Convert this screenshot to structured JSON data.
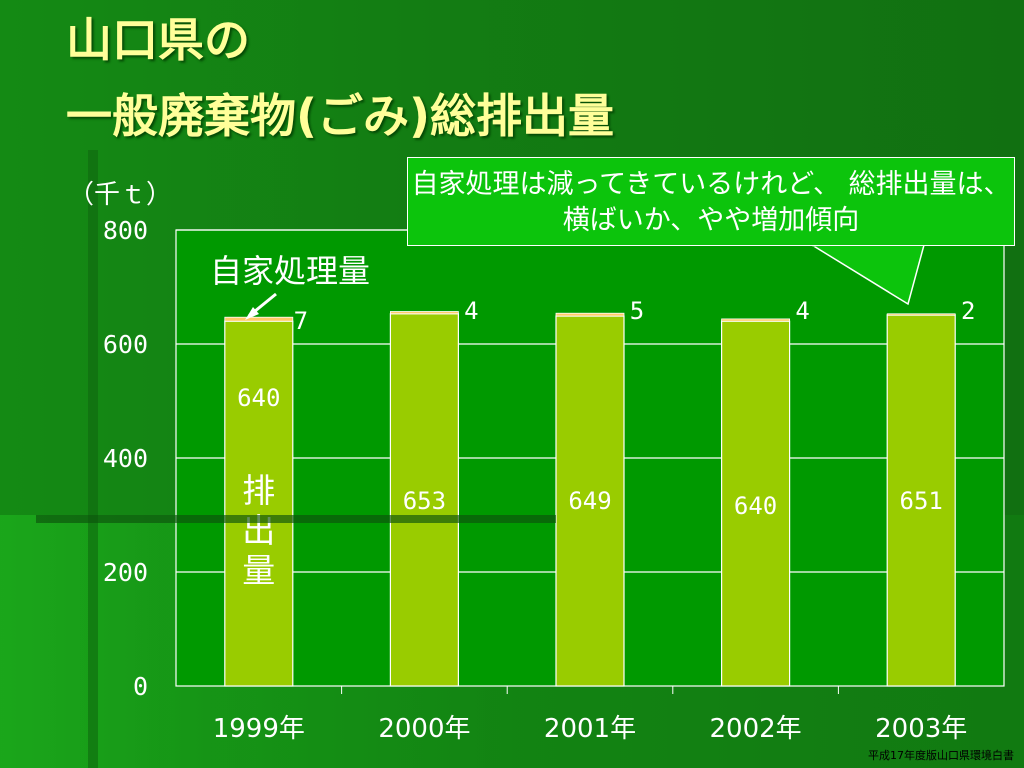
{
  "slide": {
    "title_line1": "山口県の",
    "title_line2": "一般廃棄物(ごみ)総排出量",
    "unit": "（千ｔ）",
    "callout": "自家処理は減ってきているけれど、 総排出量は、横ばいか、やや増加傾向",
    "source": "平成17年度版山口県環境白書"
  },
  "chart_data": {
    "type": "bar",
    "stacked": true,
    "categories": [
      "1999年",
      "2000年",
      "2001年",
      "2002年",
      "2003年"
    ],
    "series": [
      {
        "name": "排出量",
        "values": [
          640,
          653,
          649,
          640,
          651
        ],
        "color": "#99cc00"
      },
      {
        "name": "自家処理量",
        "values": [
          7,
          4,
          5,
          4,
          2
        ],
        "color": "#ffcc66"
      }
    ],
    "series_labels": {
      "main_vertical": [
        "排",
        "出",
        "量"
      ],
      "top": "自家処理量"
    },
    "ylim": [
      0,
      800
    ],
    "yticks": [
      0,
      200,
      400,
      600,
      800
    ],
    "grid": true,
    "plot_background": "#009900"
  }
}
